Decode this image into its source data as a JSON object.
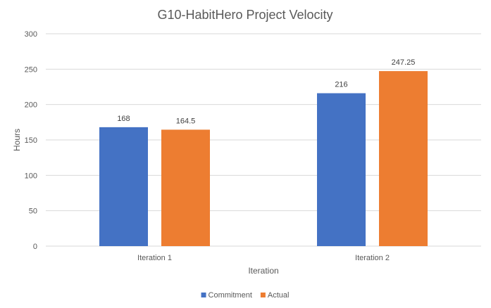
{
  "chart_data": {
    "type": "bar",
    "title": "G10-HabitHero Project Velocity",
    "xlabel": "Iteration",
    "ylabel": "Hours",
    "categories": [
      "Iteration 1",
      "Iteration 2"
    ],
    "series": [
      {
        "name": "Commitment",
        "values": [
          168,
          216
        ],
        "labels": [
          "168",
          "216"
        ],
        "color": "#4472C4"
      },
      {
        "name": "Actual",
        "values": [
          164.5,
          247.25
        ],
        "labels": [
          "164.5",
          "247.25"
        ],
        "color": "#ED7D31"
      }
    ],
    "ylim": [
      0,
      300
    ],
    "yticks": [
      0,
      50,
      100,
      150,
      200,
      250,
      300
    ],
    "grid": true,
    "legend_position": "bottom"
  }
}
